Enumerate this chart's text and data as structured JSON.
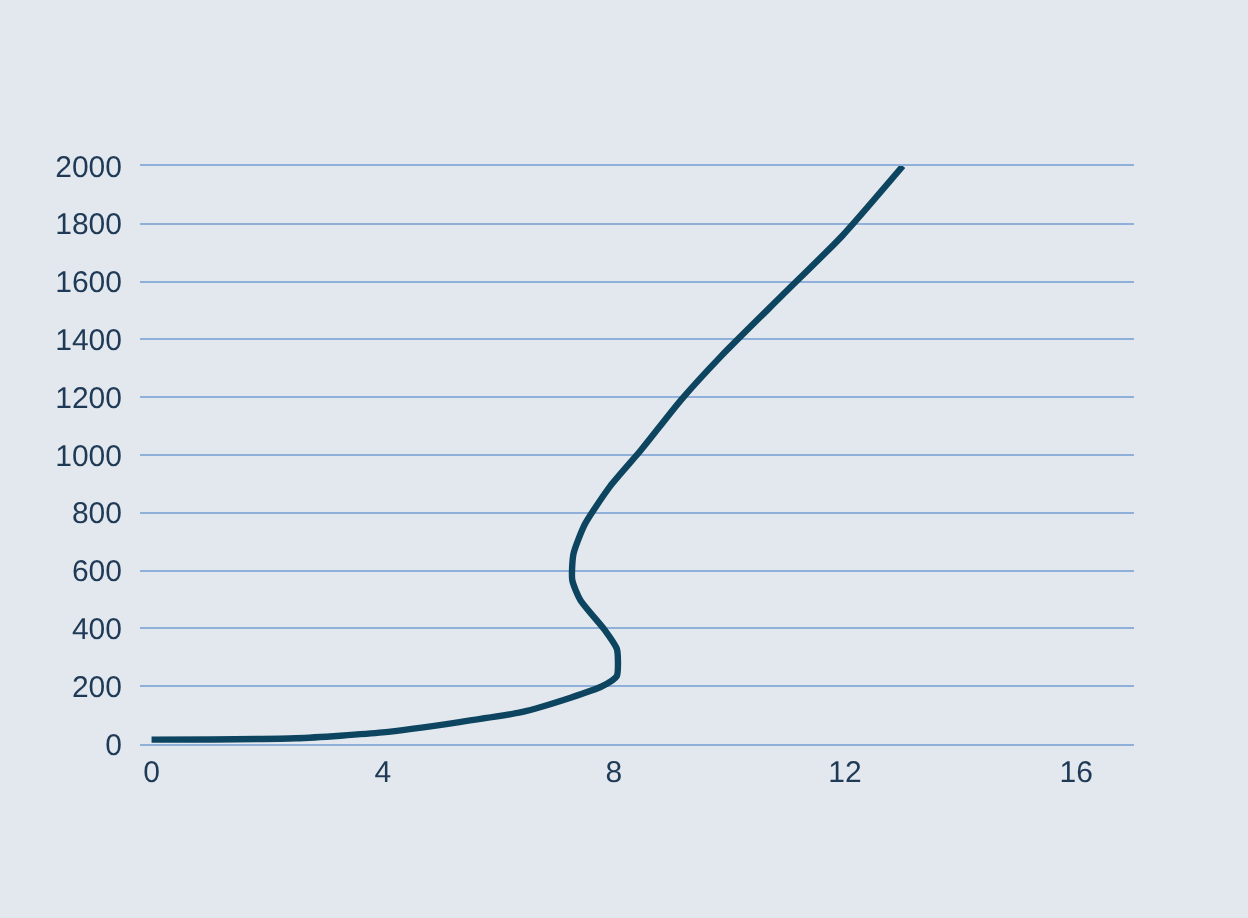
{
  "chart_data": {
    "type": "line",
    "x": [
      0,
      2.5,
      4,
      5.3,
      6.4,
      7.25,
      7.8,
      8.05,
      8.07,
      8.05,
      7.84,
      7.42,
      7.28,
      7.3,
      7.5,
      7.94,
      8.47,
      9.16,
      9.86,
      10.9,
      11.95,
      13
    ],
    "series": [
      {
        "color": "#0d4560",
        "values": [
          15,
          20,
          40,
          75,
          110,
          160,
          200,
          235,
          290,
          330,
          395,
          498,
          567,
          657,
          761,
          893,
          1017,
          1190,
          1343,
          1550,
          1758,
          2000
        ]
      }
    ],
    "xlim": [
      -0.2,
      17
    ],
    "xticks": [
      0,
      4,
      8,
      12,
      16
    ],
    "ylim": [
      0,
      2000
    ],
    "yticks": [
      0,
      200,
      400,
      600,
      800,
      1000,
      1200,
      1400,
      1600,
      1800,
      2000
    ],
    "grid": "y",
    "marker": "none",
    "line_style": "solid"
  }
}
